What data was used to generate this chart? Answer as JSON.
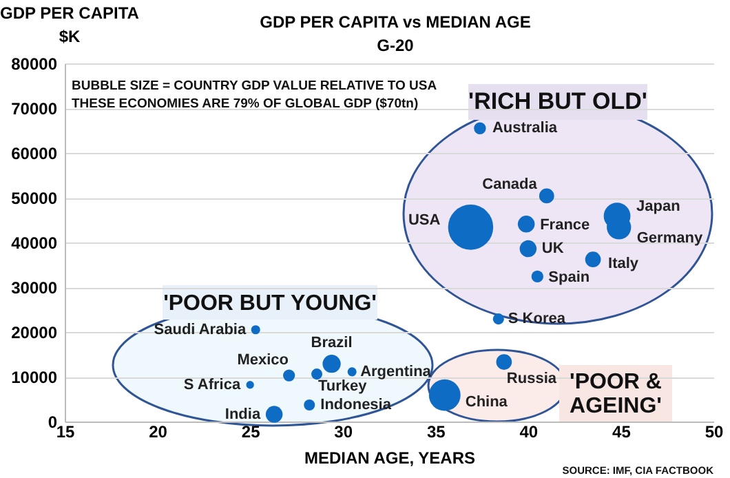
{
  "chart_data": {
    "type": "bubble",
    "title": "GDP PER CAPITA vs MEDIAN AGE",
    "subtitle": "G-20",
    "ylabel": "GDP PER CAPITA\n$K",
    "xlabel": "MEDIAN AGE, YEARS",
    "xlim": [
      15,
      50
    ],
    "xticks": [
      15,
      20,
      25,
      30,
      35,
      40,
      45,
      50
    ],
    "ylim": [
      0,
      80000
    ],
    "yticks": [
      0,
      10000,
      20000,
      30000,
      40000,
      50000,
      60000,
      70000,
      80000
    ],
    "grid": "y",
    "legend": false,
    "marker": "circle",
    "annotations": [
      "BUBBLE SIZE = COUNTRY GDP VALUE RELATIVE TO USA",
      "THESE ECONOMIES ARE 79% OF GLOBAL GDP ($70tn)",
      "'RICH BUT OLD'",
      "'POOR BUT YOUNG'",
      "'POOR &\nAGEING'",
      "SOURCE: IMF, CIA FACTBOOK"
    ],
    "series": [
      {
        "name": "Australia",
        "color": "#0f6cc4",
        "x": [
          37.4
        ],
        "values": [
          65500
        ],
        "sizes": [
          0.07
        ]
      },
      {
        "name": "Canada",
        "color": "#0f6cc4",
        "x": [
          41.0
        ],
        "values": [
          50400
        ],
        "sizes": [
          0.11
        ]
      },
      {
        "name": "USA",
        "color": "#0f6cc4",
        "x": [
          36.9
        ],
        "values": [
          43400
        ],
        "sizes": [
          1
        ]
      },
      {
        "name": "France",
        "color": "#0f6cc4",
        "x": [
          39.9
        ],
        "values": [
          44100
        ],
        "sizes": [
          0.14
        ]
      },
      {
        "name": "UK",
        "color": "#0f6cc4",
        "x": [
          40.0
        ],
        "values": [
          38600
        ],
        "sizes": [
          0.14
        ]
      },
      {
        "name": "Japan",
        "color": "#0f6cc4",
        "x": [
          44.8
        ],
        "values": [
          45900
        ],
        "sizes": [
          0.35
        ]
      },
      {
        "name": "Germany",
        "color": "#0f6cc4",
        "x": [
          44.9
        ],
        "values": [
          43400
        ],
        "sizes": [
          0.29
        ]
      },
      {
        "name": "Italy",
        "color": "#0f6cc4",
        "x": [
          43.5
        ],
        "values": [
          36200
        ],
        "sizes": [
          0.12
        ]
      },
      {
        "name": "Spain",
        "color": "#0f6cc4",
        "x": [
          40.5
        ],
        "values": [
          32400
        ],
        "sizes": [
          0.07
        ]
      },
      {
        "name": "S Korea",
        "color": "#0f6cc4",
        "x": [
          38.4
        ],
        "values": [
          22900
        ],
        "sizes": [
          0.06
        ]
      },
      {
        "name": "Russia",
        "color": "#0f6cc4",
        "x": [
          38.7
        ],
        "values": [
          13300
        ],
        "sizes": [
          0.12
        ]
      },
      {
        "name": "China",
        "color": "#0f6cc4",
        "x": [
          35.5
        ],
        "values": [
          5900
        ],
        "sizes": [
          0.49
        ]
      },
      {
        "name": "Saudi Arabia",
        "color": "#0f6cc4",
        "x": [
          25.3
        ],
        "values": [
          20500
        ],
        "sizes": [
          0.04
        ]
      },
      {
        "name": "Brazil",
        "color": "#0f6cc4",
        "x": [
          29.4
        ],
        "values": [
          12900
        ],
        "sizes": [
          0.16
        ]
      },
      {
        "name": "Argentina",
        "color": "#0f6cc4",
        "x": [
          30.5
        ],
        "values": [
          11100
        ],
        "sizes": [
          0.04
        ]
      },
      {
        "name": "Mexico",
        "color": "#0f6cc4",
        "x": [
          27.1
        ],
        "values": [
          10300
        ],
        "sizes": [
          0.07
        ]
      },
      {
        "name": "Turkey",
        "color": "#0f6cc4",
        "x": [
          28.6
        ],
        "values": [
          10600
        ],
        "sizes": [
          0.06
        ]
      },
      {
        "name": "S Africa",
        "color": "#0f6cc4",
        "x": [
          25.0
        ],
        "values": [
          8200
        ],
        "sizes": [
          0.03
        ]
      },
      {
        "name": "Indonesia",
        "color": "#0f6cc4",
        "x": [
          28.2
        ],
        "values": [
          3700
        ],
        "sizes": [
          0.06
        ]
      },
      {
        "name": "India",
        "color": "#0f6cc4",
        "x": [
          26.3
        ],
        "values": [
          1600
        ],
        "sizes": [
          0.14
        ]
      }
    ]
  }
}
